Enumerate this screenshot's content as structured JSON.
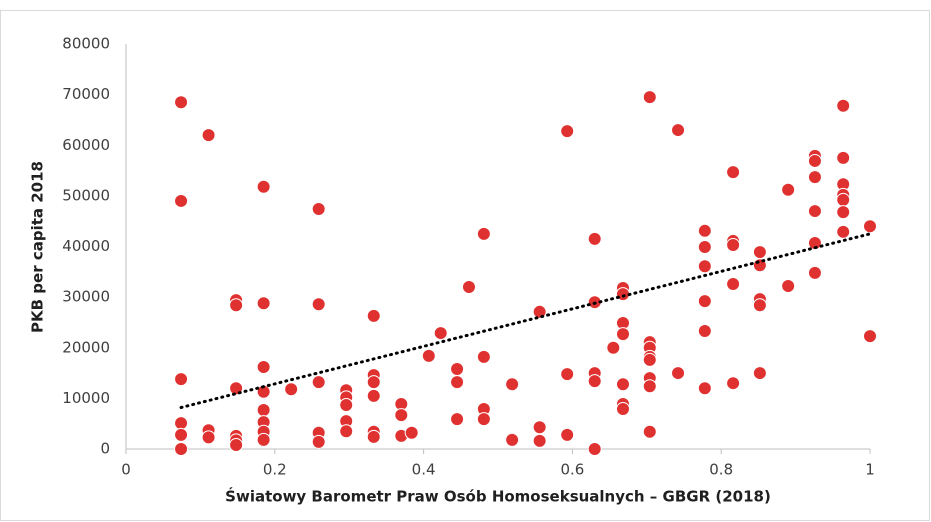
{
  "chart_data": {
    "type": "scatter",
    "xlabel": "Światowy Barometr Praw Osób Homoseksualnych – GBGR (2018)",
    "ylabel": "PKB per capita 2018",
    "xlim": [
      0,
      1
    ],
    "xticks": [
      0,
      0.2,
      0.4,
      0.6,
      0.8,
      1
    ],
    "ylim": [
      0,
      80000
    ],
    "yticks": [
      0,
      10000,
      20000,
      30000,
      40000,
      50000,
      60000,
      70000,
      80000
    ],
    "grid": false,
    "color": "#e03131",
    "x": [
      0.074,
      0.074,
      0.074,
      0.074,
      0.074,
      0.074,
      0.111,
      0.111,
      0.111,
      0.148,
      0.148,
      0.148,
      0.148,
      0.148,
      0.148,
      0.185,
      0.185,
      0.185,
      0.185,
      0.185,
      0.185,
      0.185,
      0.185,
      0.222,
      0.259,
      0.259,
      0.259,
      0.259,
      0.259,
      0.296,
      0.296,
      0.296,
      0.296,
      0.296,
      0.333,
      0.333,
      0.333,
      0.333,
      0.333,
      0.333,
      0.37,
      0.37,
      0.37,
      0.384,
      0.407,
      0.423,
      0.445,
      0.445,
      0.445,
      0.461,
      0.481,
      0.481,
      0.481,
      0.481,
      0.519,
      0.519,
      0.556,
      0.556,
      0.556,
      0.593,
      0.593,
      0.593,
      0.63,
      0.63,
      0.63,
      0.63,
      0.63,
      0.655,
      0.668,
      0.668,
      0.668,
      0.668,
      0.668,
      0.668,
      0.668,
      0.704,
      0.704,
      0.704,
      0.704,
      0.704,
      0.704,
      0.704,
      0.704,
      0.742,
      0.742,
      0.778,
      0.778,
      0.778,
      0.778,
      0.778,
      0.778,
      0.816,
      0.816,
      0.816,
      0.816,
      0.816,
      0.852,
      0.852,
      0.852,
      0.852,
      0.852,
      0.89,
      0.89,
      0.926,
      0.926,
      0.926,
      0.926,
      0.926,
      0.926,
      0.964,
      0.964,
      0.964,
      0.964,
      0.964,
      0.964,
      0.964,
      1,
      1
    ],
    "y": [
      68500,
      49000,
      13800,
      5100,
      2800,
      0,
      62000,
      3700,
      2300,
      29400,
      28400,
      12000,
      2600,
      1700,
      800,
      51800,
      28800,
      16200,
      11300,
      7700,
      5300,
      3400,
      1800,
      11800,
      47400,
      28600,
      13200,
      3200,
      1400,
      11600,
      10200,
      8700,
      5500,
      3500,
      26300,
      14600,
      13200,
      10500,
      3400,
      2400,
      8900,
      6700,
      2600,
      3200,
      18400,
      22900,
      15800,
      13200,
      5900,
      32000,
      42500,
      18200,
      7900,
      5900,
      12800,
      1800,
      27100,
      4300,
      1600,
      62800,
      14800,
      2800,
      41500,
      29000,
      15000,
      13400,
      0,
      20000,
      31800,
      30600,
      24900,
      22700,
      12800,
      8900,
      7900,
      69500,
      21100,
      20000,
      18200,
      17600,
      14000,
      12400,
      3400,
      63000,
      15000,
      43100,
      39900,
      36100,
      29200,
      23300,
      12000,
      54700,
      41100,
      40300,
      32600,
      13000,
      38900,
      36300,
      29600,
      28400,
      15000,
      51200,
      32200,
      57900,
      56900,
      53700,
      47000,
      40700,
      34800,
      67800,
      57500,
      52300,
      50200,
      49200,
      46800,
      42900,
      44000,
      22300
    ],
    "trendline": {
      "x": [
        0.074,
        1
      ],
      "y": [
        8200,
        42500
      ],
      "color": "#000000"
    }
  }
}
